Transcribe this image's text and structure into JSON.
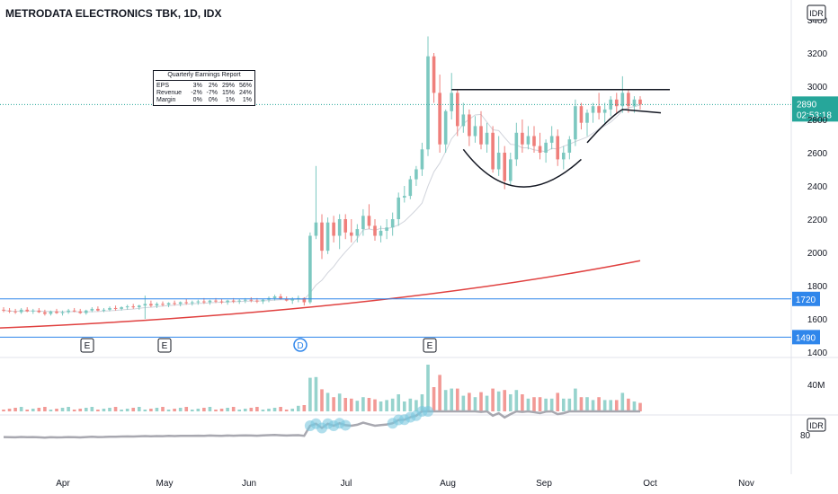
{
  "chart_title": "METRODATA ELECTRONICS TBK, 1D, IDX",
  "currency_badge": "IDR",
  "rsi_badge": "IDR",
  "earnings_box": {
    "title": "Quarterly Earnings Report",
    "rows": [
      {
        "label": "EPS",
        "values": [
          "3%",
          "2%",
          "29%",
          "56%"
        ]
      },
      {
        "label": "Revenue",
        "values": [
          "-2%",
          "-7%",
          "15%",
          "24%"
        ]
      },
      {
        "label": "Margin",
        "values": [
          "0%",
          "0%",
          "1%",
          "1%"
        ]
      }
    ]
  },
  "chart_data": {
    "type": "candlestick",
    "x_ticks": [
      "Apr",
      "May",
      "Jun",
      "Jul",
      "Aug",
      "Sep",
      "Oct",
      "Nov"
    ],
    "y_ticks": [
      3400,
      3200,
      3000,
      2800,
      2600,
      2400,
      2200,
      2000,
      1800,
      1600,
      1400
    ],
    "ylim": [
      1400,
      3400
    ],
    "current_price": {
      "value": "2890",
      "countdown": "02:53:18"
    },
    "support_lines": [
      {
        "value": 1720,
        "label": "1720"
      },
      {
        "value": 1490,
        "label": "1490"
      }
    ],
    "resistance_line": 2980,
    "event_markers": [
      {
        "label": "E",
        "month_pos": "late Mar"
      },
      {
        "label": "E",
        "month_pos": "late Apr"
      },
      {
        "label": "D",
        "month_pos": "mid Jun"
      },
      {
        "label": "E",
        "month_pos": "late Jul"
      }
    ],
    "volume_label": "40M",
    "rsi_label": "80",
    "ohlc": [
      [
        1655,
        1670,
        1640,
        1650
      ],
      [
        1650,
        1665,
        1635,
        1645
      ],
      [
        1645,
        1660,
        1630,
        1640
      ],
      [
        1640,
        1665,
        1630,
        1655
      ],
      [
        1655,
        1670,
        1640,
        1645
      ],
      [
        1645,
        1660,
        1630,
        1650
      ],
      [
        1650,
        1665,
        1635,
        1640
      ],
      [
        1640,
        1655,
        1620,
        1630
      ],
      [
        1630,
        1650,
        1620,
        1645
      ],
      [
        1645,
        1660,
        1630,
        1635
      ],
      [
        1635,
        1650,
        1620,
        1640
      ],
      [
        1640,
        1660,
        1630,
        1650
      ],
      [
        1650,
        1665,
        1640,
        1645
      ],
      [
        1645,
        1660,
        1630,
        1635
      ],
      [
        1635,
        1655,
        1625,
        1650
      ],
      [
        1650,
        1670,
        1640,
        1660
      ],
      [
        1660,
        1675,
        1645,
        1650
      ],
      [
        1650,
        1665,
        1640,
        1655
      ],
      [
        1655,
        1675,
        1645,
        1665
      ],
      [
        1665,
        1680,
        1650,
        1660
      ],
      [
        1660,
        1675,
        1650,
        1670
      ],
      [
        1670,
        1685,
        1655,
        1675
      ],
      [
        1675,
        1690,
        1660,
        1670
      ],
      [
        1670,
        1685,
        1655,
        1680
      ],
      [
        1680,
        1740,
        1600,
        1690
      ],
      [
        1690,
        1710,
        1670,
        1680
      ],
      [
        1680,
        1700,
        1665,
        1690
      ],
      [
        1690,
        1705,
        1675,
        1685
      ],
      [
        1685,
        1700,
        1670,
        1695
      ],
      [
        1695,
        1710,
        1680,
        1690
      ],
      [
        1690,
        1705,
        1675,
        1700
      ],
      [
        1700,
        1720,
        1685,
        1695
      ],
      [
        1695,
        1710,
        1680,
        1700
      ],
      [
        1700,
        1715,
        1685,
        1705
      ],
      [
        1705,
        1725,
        1690,
        1700
      ],
      [
        1700,
        1715,
        1685,
        1710
      ],
      [
        1710,
        1725,
        1695,
        1705
      ],
      [
        1705,
        1720,
        1690,
        1700
      ],
      [
        1700,
        1715,
        1685,
        1710
      ],
      [
        1710,
        1725,
        1695,
        1705
      ],
      [
        1705,
        1720,
        1690,
        1710
      ],
      [
        1710,
        1725,
        1695,
        1715
      ],
      [
        1715,
        1730,
        1700,
        1710
      ],
      [
        1710,
        1725,
        1695,
        1705
      ],
      [
        1705,
        1720,
        1690,
        1715
      ],
      [
        1715,
        1735,
        1700,
        1725
      ],
      [
        1725,
        1745,
        1710,
        1735
      ],
      [
        1735,
        1750,
        1715,
        1720
      ],
      [
        1720,
        1735,
        1705,
        1710
      ],
      [
        1710,
        1730,
        1690,
        1720
      ],
      [
        1720,
        1740,
        1700,
        1725
      ],
      [
        1725,
        1730,
        1680,
        1700
      ],
      [
        1700,
        2120,
        1690,
        2100
      ],
      [
        2100,
        2520,
        2080,
        2180
      ],
      [
        2180,
        2230,
        1960,
        2010
      ],
      [
        2010,
        2210,
        1990,
        2180
      ],
      [
        2180,
        2220,
        2060,
        2100
      ],
      [
        2100,
        2230,
        2020,
        2200
      ],
      [
        2200,
        2230,
        2080,
        2120
      ],
      [
        2120,
        2200,
        2060,
        2100
      ],
      [
        2100,
        2170,
        2060,
        2140
      ],
      [
        2140,
        2260,
        2100,
        2220
      ],
      [
        2220,
        2290,
        2140,
        2160
      ],
      [
        2160,
        2200,
        2070,
        2100
      ],
      [
        2100,
        2160,
        2060,
        2130
      ],
      [
        2130,
        2200,
        2080,
        2150
      ],
      [
        2150,
        2240,
        2100,
        2200
      ],
      [
        2200,
        2360,
        2160,
        2330
      ],
      [
        2330,
        2400,
        2300,
        2340
      ],
      [
        2340,
        2460,
        2320,
        2440
      ],
      [
        2440,
        2520,
        2400,
        2500
      ],
      [
        2500,
        2660,
        2460,
        2620
      ],
      [
        2620,
        3300,
        2580,
        3180
      ],
      [
        3180,
        3200,
        2900,
        2960
      ],
      [
        2960,
        3070,
        2600,
        2650
      ],
      [
        2650,
        2860,
        2600,
        2850
      ],
      [
        2850,
        3080,
        2800,
        2960
      ],
      [
        2960,
        2980,
        2700,
        2760
      ],
      [
        2760,
        2900,
        2720,
        2830
      ],
      [
        2830,
        2860,
        2640,
        2700
      ],
      [
        2700,
        2820,
        2660,
        2760
      ],
      [
        2760,
        2850,
        2620,
        2650
      ],
      [
        2650,
        2780,
        2600,
        2720
      ],
      [
        2720,
        2760,
        2480,
        2500
      ],
      [
        2500,
        2700,
        2460,
        2600
      ],
      [
        2600,
        2640,
        2380,
        2430
      ],
      [
        2430,
        2600,
        2400,
        2560
      ],
      [
        2560,
        2780,
        2520,
        2720
      ],
      [
        2720,
        2800,
        2600,
        2650
      ],
      [
        2650,
        2760,
        2620,
        2700
      ],
      [
        2700,
        2760,
        2600,
        2640
      ],
      [
        2640,
        2720,
        2560,
        2600
      ],
      [
        2600,
        2680,
        2540,
        2660
      ],
      [
        2660,
        2760,
        2620,
        2700
      ],
      [
        2700,
        2740,
        2520,
        2560
      ],
      [
        2560,
        2640,
        2500,
        2600
      ],
      [
        2600,
        2700,
        2560,
        2680
      ],
      [
        2680,
        2920,
        2640,
        2880
      ],
      [
        2880,
        2900,
        2740,
        2780
      ],
      [
        2780,
        2860,
        2700,
        2840
      ],
      [
        2840,
        2900,
        2780,
        2880
      ],
      [
        2880,
        2960,
        2800,
        2840
      ],
      [
        2840,
        2900,
        2780,
        2860
      ],
      [
        2860,
        2940,
        2820,
        2920
      ],
      [
        2920,
        2960,
        2840,
        2880
      ],
      [
        2880,
        3060,
        2840,
        2960
      ],
      [
        2960,
        2980,
        2840,
        2880
      ],
      [
        2880,
        2940,
        2840,
        2920
      ],
      [
        2920,
        2940,
        2860,
        2890
      ]
    ]
  }
}
